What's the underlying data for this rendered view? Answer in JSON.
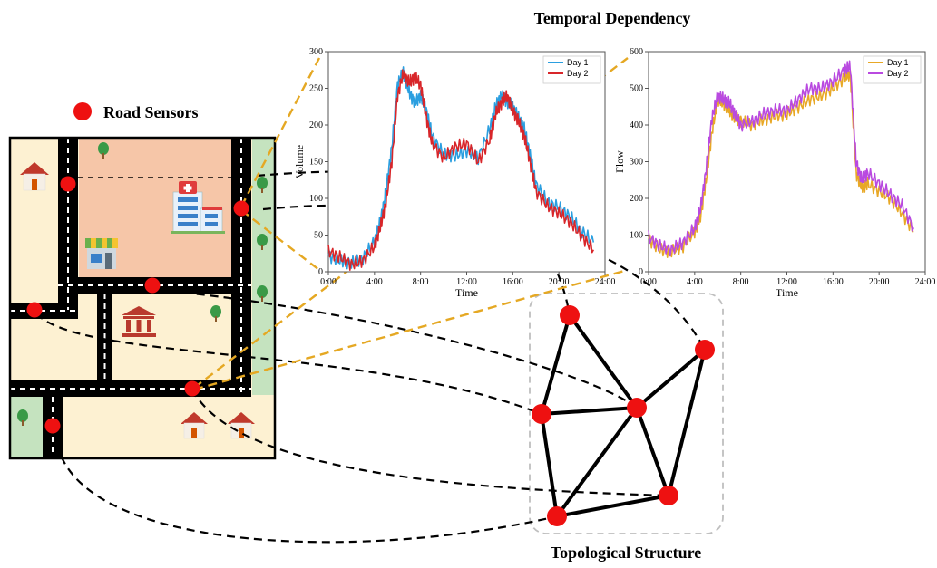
{
  "titles": {
    "temporal": "Temporal Dependency",
    "topological": "Topological Structure"
  },
  "legend": {
    "road_sensors": "Road Sensors"
  },
  "colors": {
    "sensor": "#ee1111",
    "link": "#000000",
    "zoom_link": "#e5a823",
    "city_residential": "#fdf1d2",
    "city_hospital_block": "#f6c6a8",
    "city_park": "#c5e3bf",
    "road": "#000000",
    "day1_volume": "#2b9fe0",
    "day2_volume": "#d8262a",
    "day1_flow": "#e8a826",
    "day2_flow": "#b94ae0"
  },
  "icons": [
    "house-icon",
    "hospital-icon",
    "shop-icon",
    "bank-icon",
    "tree-icon"
  ],
  "chart_data": [
    {
      "type": "line",
      "xlabel": "Time",
      "ylabel": "Volume",
      "xticks": [
        "0:00",
        "4:00",
        "8:00",
        "12:00",
        "16:00",
        "20:00",
        "24:00"
      ],
      "xlim": [
        0,
        24
      ],
      "ylim": [
        0,
        300
      ],
      "yticks": [
        "0",
        "50",
        "100",
        "150",
        "200",
        "250",
        "300"
      ],
      "legend_position": "top-right",
      "series": [
        {
          "name": "Day 1",
          "color": "#2b9fe0",
          "x": [
            0,
            1,
            2,
            3,
            4,
            4.5,
            5,
            5.5,
            6,
            6.5,
            7,
            7.5,
            8,
            8.5,
            9,
            10,
            11,
            12,
            13,
            14,
            14.5,
            15,
            15.5,
            16,
            16.5,
            17,
            17.5,
            18,
            19,
            20,
            21,
            22,
            23
          ],
          "y": [
            22,
            15,
            12,
            18,
            42,
            68,
            110,
            170,
            255,
            272,
            245,
            230,
            240,
            220,
            185,
            160,
            158,
            165,
            155,
            195,
            225,
            240,
            232,
            225,
            210,
            195,
            160,
            120,
            95,
            88,
            75,
            55,
            40
          ]
        },
        {
          "name": "Day 2",
          "color": "#d8262a",
          "x": [
            0,
            1,
            2,
            3,
            4,
            4.5,
            5,
            5.5,
            6,
            6.5,
            7,
            7.5,
            8,
            8.5,
            9,
            10,
            11,
            12,
            13,
            14,
            14.5,
            15,
            15.5,
            16,
            16.5,
            17,
            17.5,
            18,
            19,
            20,
            21,
            22,
            23
          ],
          "y": [
            28,
            20,
            10,
            15,
            35,
            60,
            95,
            150,
            240,
            270,
            258,
            265,
            255,
            210,
            175,
            155,
            170,
            175,
            150,
            180,
            215,
            230,
            240,
            220,
            205,
            185,
            150,
            110,
            90,
            80,
            68,
            48,
            30
          ]
        }
      ]
    },
    {
      "type": "line",
      "xlabel": "Time",
      "ylabel": "Flow",
      "xticks": [
        "0:00",
        "4:00",
        "8:00",
        "12:00",
        "16:00",
        "20:00",
        "24:00"
      ],
      "xlim": [
        0,
        24
      ],
      "ylim": [
        0,
        600
      ],
      "yticks": [
        "0",
        "100",
        "200",
        "300",
        "400",
        "500",
        "600"
      ],
      "legend_position": "top-right",
      "series": [
        {
          "name": "Day 1",
          "color": "#e8a826",
          "x": [
            0,
            1,
            2,
            3,
            4,
            4.5,
            5,
            5.5,
            6,
            6.5,
            7,
            7.5,
            8,
            9,
            10,
            11,
            12,
            13,
            14,
            15,
            16,
            17,
            17.5,
            18,
            18.5,
            19,
            20,
            21,
            22,
            23
          ],
          "y": [
            90,
            60,
            55,
            70,
            110,
            150,
            250,
            380,
            470,
            460,
            440,
            420,
            410,
            400,
            415,
            425,
            430,
            450,
            470,
            480,
            500,
            530,
            540,
            270,
            230,
            240,
            220,
            200,
            160,
            110
          ]
        },
        {
          "name": "Day 2",
          "color": "#b94ae0",
          "x": [
            0,
            1,
            2,
            3,
            4,
            4.5,
            5,
            5.5,
            6,
            6.5,
            7,
            7.5,
            8,
            9,
            10,
            11,
            12,
            13,
            14,
            15,
            16,
            17,
            17.5,
            18,
            18.5,
            19,
            20,
            21,
            22,
            23
          ],
          "y": [
            95,
            70,
            60,
            80,
            120,
            170,
            280,
            420,
            480,
            470,
            460,
            430,
            400,
            410,
            430,
            440,
            440,
            470,
            500,
            500,
            520,
            550,
            560,
            300,
            250,
            270,
            240,
            210,
            180,
            120
          ]
        }
      ]
    }
  ]
}
